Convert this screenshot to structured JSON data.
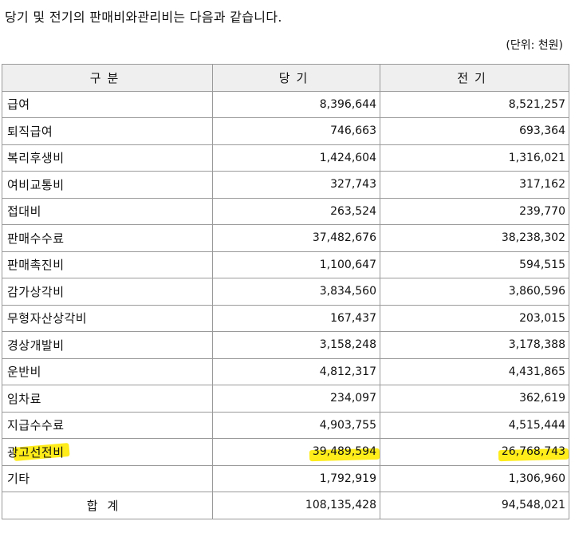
{
  "intro_text": "당기 및 전기의 판매비와관리비는 다음과 같습니다.",
  "unit_text": "(단위: 천원)",
  "highlight_color": "#ffec1a",
  "table": {
    "headers": [
      "구분",
      "당기",
      "전기"
    ],
    "rows": [
      {
        "name": "급여",
        "current": "8,396,644",
        "prior": "8,521,257"
      },
      {
        "name": "퇴직급여",
        "current": "746,663",
        "prior": "693,364"
      },
      {
        "name": "복리후생비",
        "current": "1,424,604",
        "prior": "1,316,021"
      },
      {
        "name": "여비교통비",
        "current": "327,743",
        "prior": "317,162"
      },
      {
        "name": "접대비",
        "current": "263,524",
        "prior": "239,770"
      },
      {
        "name": "판매수수료",
        "current": "37,482,676",
        "prior": "38,238,302"
      },
      {
        "name": "판매촉진비",
        "current": "1,100,647",
        "prior": "594,515"
      },
      {
        "name": "감가상각비",
        "current": "3,834,560",
        "prior": "3,860,596"
      },
      {
        "name": "무형자산상각비",
        "current": "167,437",
        "prior": "203,015"
      },
      {
        "name": "경상개발비",
        "current": "3,158,248",
        "prior": "3,178,388"
      },
      {
        "name": "운반비",
        "current": "4,812,317",
        "prior": "4,431,865"
      },
      {
        "name": "임차료",
        "current": "234,097",
        "prior": "362,619"
      },
      {
        "name": "지급수수료",
        "current": "4,903,755",
        "prior": "4,515,444"
      },
      {
        "name": "광고선전비",
        "current": "39,489,594",
        "prior": "26,768,743"
      },
      {
        "name": "기타",
        "current": "1,792,919",
        "prior": "1,306,960"
      }
    ],
    "total": {
      "label": "합계",
      "current": "108,135,428",
      "prior": "94,548,021"
    }
  }
}
